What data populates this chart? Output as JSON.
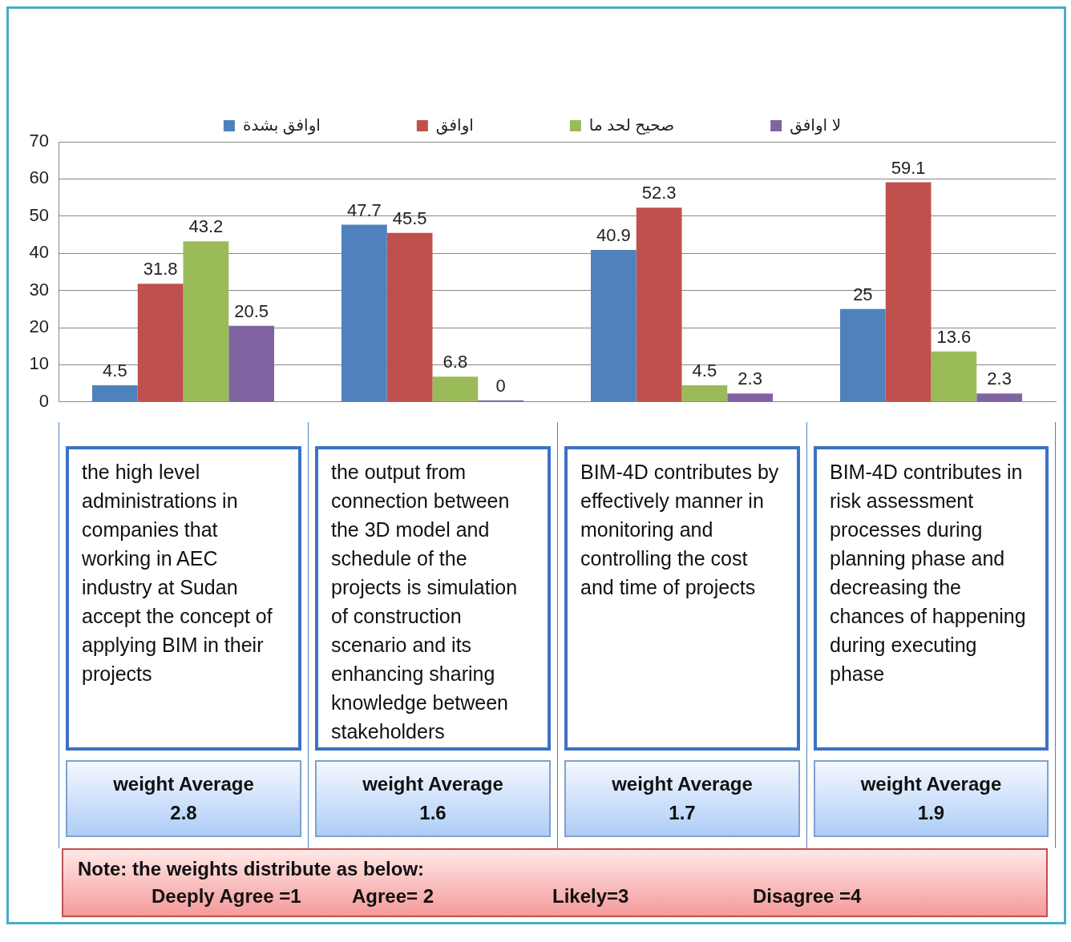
{
  "chart_data": {
    "type": "bar",
    "categories": [
      "the high level administrations in companies that working in AEC industry at Sudan accept the concept of applying BIM in their projects",
      "the output from connection between the 3D model and schedule of the projects is simulation of construction scenario and its enhancing sharing knowledge between stakeholders",
      "BIM-4D contributes by effectively manner in monitoring and controlling the cost and time of projects",
      "BIM-4D contributes in risk assessment processes during planning phase and decreasing the chances of happening during executing phase"
    ],
    "series": [
      {
        "name": "اوافق بشدة",
        "color": "#4f81bd",
        "values": [
          4.5,
          47.7,
          40.9,
          25
        ]
      },
      {
        "name": "اوافق",
        "color": "#c0504d",
        "values": [
          31.8,
          45.5,
          52.3,
          59.1
        ]
      },
      {
        "name": "صحيح لحد ما",
        "color": "#9bbb59",
        "values": [
          43.2,
          6.8,
          4.5,
          13.6
        ]
      },
      {
        "name": "لا اوافق",
        "color": "#8064a2",
        "values": [
          20.5,
          0,
          2.3,
          2.3
        ]
      }
    ],
    "ylim": [
      0,
      70
    ],
    "yticks": [
      0,
      10,
      20,
      30,
      40,
      50,
      60,
      70
    ],
    "grid": "y",
    "legend": "top",
    "data_labels": true,
    "annotations": [
      "weight Average\n2.8",
      "weight Average\n1.6",
      "weight Average\n1.7",
      "weight Average\n1.9",
      "Note: the weights distribute as below:",
      "Deeply Agree =1",
      "Agree= 2",
      "Likely=3",
      "Disagree =4"
    ]
  }
}
